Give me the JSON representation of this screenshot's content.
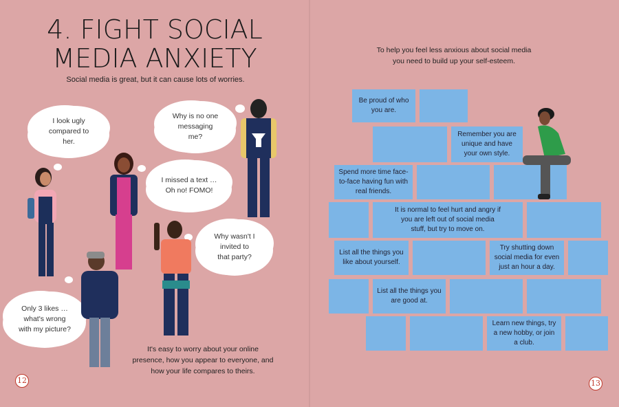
{
  "left_page": {
    "title_line1": "4. FIGHT SOCIAL",
    "title_line2": "MEDIA ANXIETY",
    "subtitle": "Social media is great, but it can cause lots of worries.",
    "bubbles": {
      "ugly": "I look ugly compared to her.",
      "messaging": "Why is no one messaging me?",
      "fomo": "I missed a text … Oh no! FOMO!",
      "invited": "Why wasn't I invited to that party?",
      "likes": "Only 3 likes … what's wrong with my picture?"
    },
    "body_text": "It's easy to worry about your online presence, how you appear to everyone, and how your life compares to theirs.",
    "page_number": "12"
  },
  "right_page": {
    "intro": "To help you feel less anxious about social media you need to build up your self-esteem.",
    "bricks": {
      "proud": "Be proud of who you are.",
      "unique": "Remember you are unique and have your own style.",
      "face": "Spend more time face-to-face having fun with real friends.",
      "normal": "It is normal to feel hurt and angry if you are left out of social media stuff, but try to move on.",
      "like": "List all the things you like about yourself.",
      "shutdown": "Try shutting down social media for even just an hour a day.",
      "good": "List all the things you are good at.",
      "learn": "Learn new things, try a new hobby, or join a club."
    },
    "page_number": "13"
  },
  "colors": {
    "background": "#dca6a6",
    "brick": "#7cb5e6",
    "page_number_ring": "#c0392b"
  }
}
